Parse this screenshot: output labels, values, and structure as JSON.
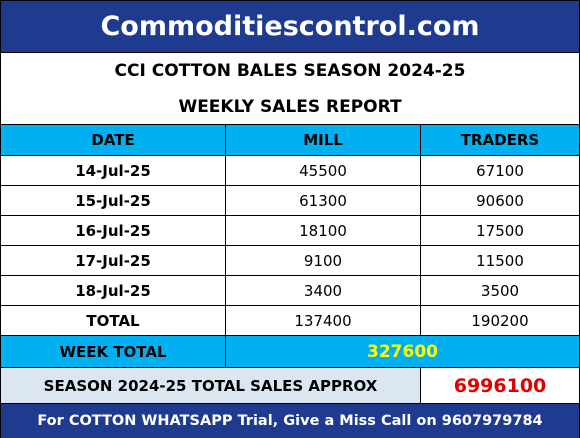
{
  "header": {
    "title": "Commoditiescontrol.com"
  },
  "report": {
    "title": "CCI COTTON BALES SEASON 2024-25",
    "subtitle": "WEEKLY SALES REPORT"
  },
  "table": {
    "columns": [
      "DATE",
      "MILL",
      "TRADERS"
    ],
    "rows": [
      [
        "14-Jul-25",
        45500,
        67100
      ],
      [
        "15-Jul-25",
        61300,
        90600
      ],
      [
        "16-Jul-25",
        18100,
        17500
      ],
      [
        "17-Jul-25",
        9100,
        11500
      ],
      [
        "18-Jul-25",
        3400,
        3500
      ]
    ],
    "total": [
      "TOTAL",
      137400,
      190200
    ]
  },
  "week_total": {
    "label": "WEEK TOTAL",
    "value": 327600
  },
  "season_total": {
    "label": "SEASON 2024-25 TOTAL SALES APPROX",
    "value": 6996100
  },
  "footer": "For COTTON WHATSAPP Trial, Give a Miss Call on 9607979784"
}
